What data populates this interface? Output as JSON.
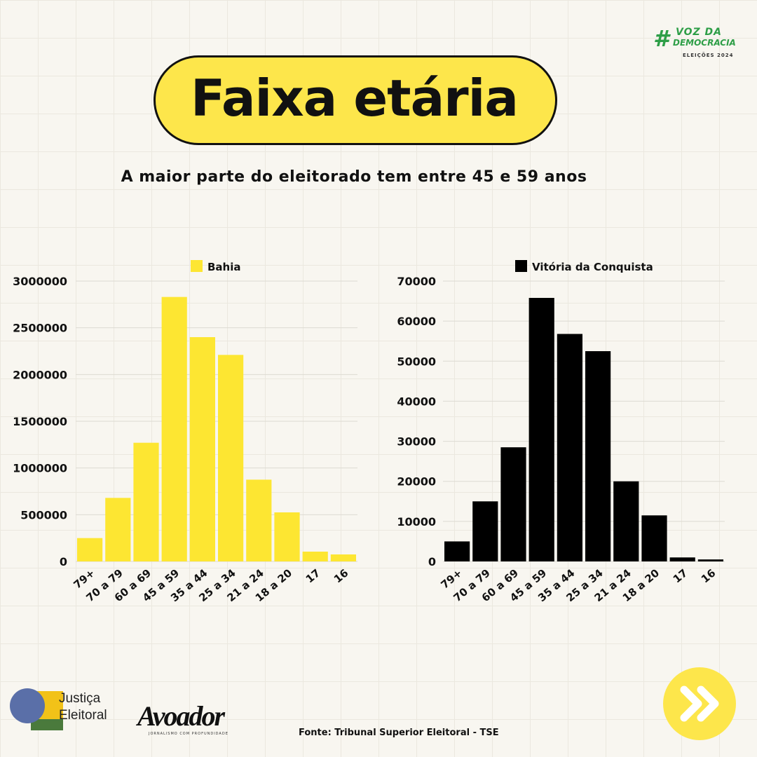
{
  "header": {
    "title": "Faixa etária",
    "subtitle": "A maior parte do eleitorado tem entre 45 e 59 anos",
    "brand_hash": "#",
    "brand_line1": "VOZ DA",
    "brand_line2": "DEMOCRACIA",
    "brand_line3": "ELEIÇÕES 2024"
  },
  "colors": {
    "yellow": "#fde632",
    "black": "#000000",
    "accent_green": "#2e9e47"
  },
  "chart_data": [
    {
      "type": "bar",
      "categories": [
        "79+",
        "70 a 79",
        "60 a 69",
        "45 a 59",
        "35 a 44",
        "25 a 34",
        "21 a 24",
        "18 a 20",
        "17",
        "16"
      ],
      "series": [
        {
          "name": "Bahia",
          "values": [
            250000,
            680000,
            1270000,
            2830000,
            2400000,
            2210000,
            875000,
            525000,
            105000,
            75000
          ]
        }
      ],
      "ylim": [
        0,
        3000000
      ],
      "yticks": [
        "0",
        "500000",
        "1000000",
        "1500000",
        "2000000",
        "2500000",
        "3000000"
      ],
      "legend": "top",
      "grid": true,
      "color": "#fde632"
    },
    {
      "type": "bar",
      "categories": [
        "79+",
        "70 a 79",
        "60 a 69",
        "45 a 59",
        "35 a 44",
        "25 a 34",
        "21 a 24",
        "18 a 20",
        "17",
        "16"
      ],
      "series": [
        {
          "name": "Vitória da Conquista",
          "values": [
            5000,
            15000,
            28500,
            65800,
            56800,
            52500,
            20000,
            11500,
            1000,
            500
          ]
        }
      ],
      "ylim": [
        0,
        70000
      ],
      "yticks": [
        "0",
        "10000",
        "20000",
        "30000",
        "40000",
        "50000",
        "60000",
        "70000"
      ],
      "legend": "top",
      "grid": true,
      "color": "#000000"
    }
  ],
  "footer": {
    "logo_je_line1": "Justiça",
    "logo_je_line2": "Eleitoral",
    "avoador": "Avoador",
    "avoador_tagline": "JORNALISMO COM PROFUNDIDADE",
    "source": "Fonte: Tribunal Superior Eleitoral - TSE"
  }
}
